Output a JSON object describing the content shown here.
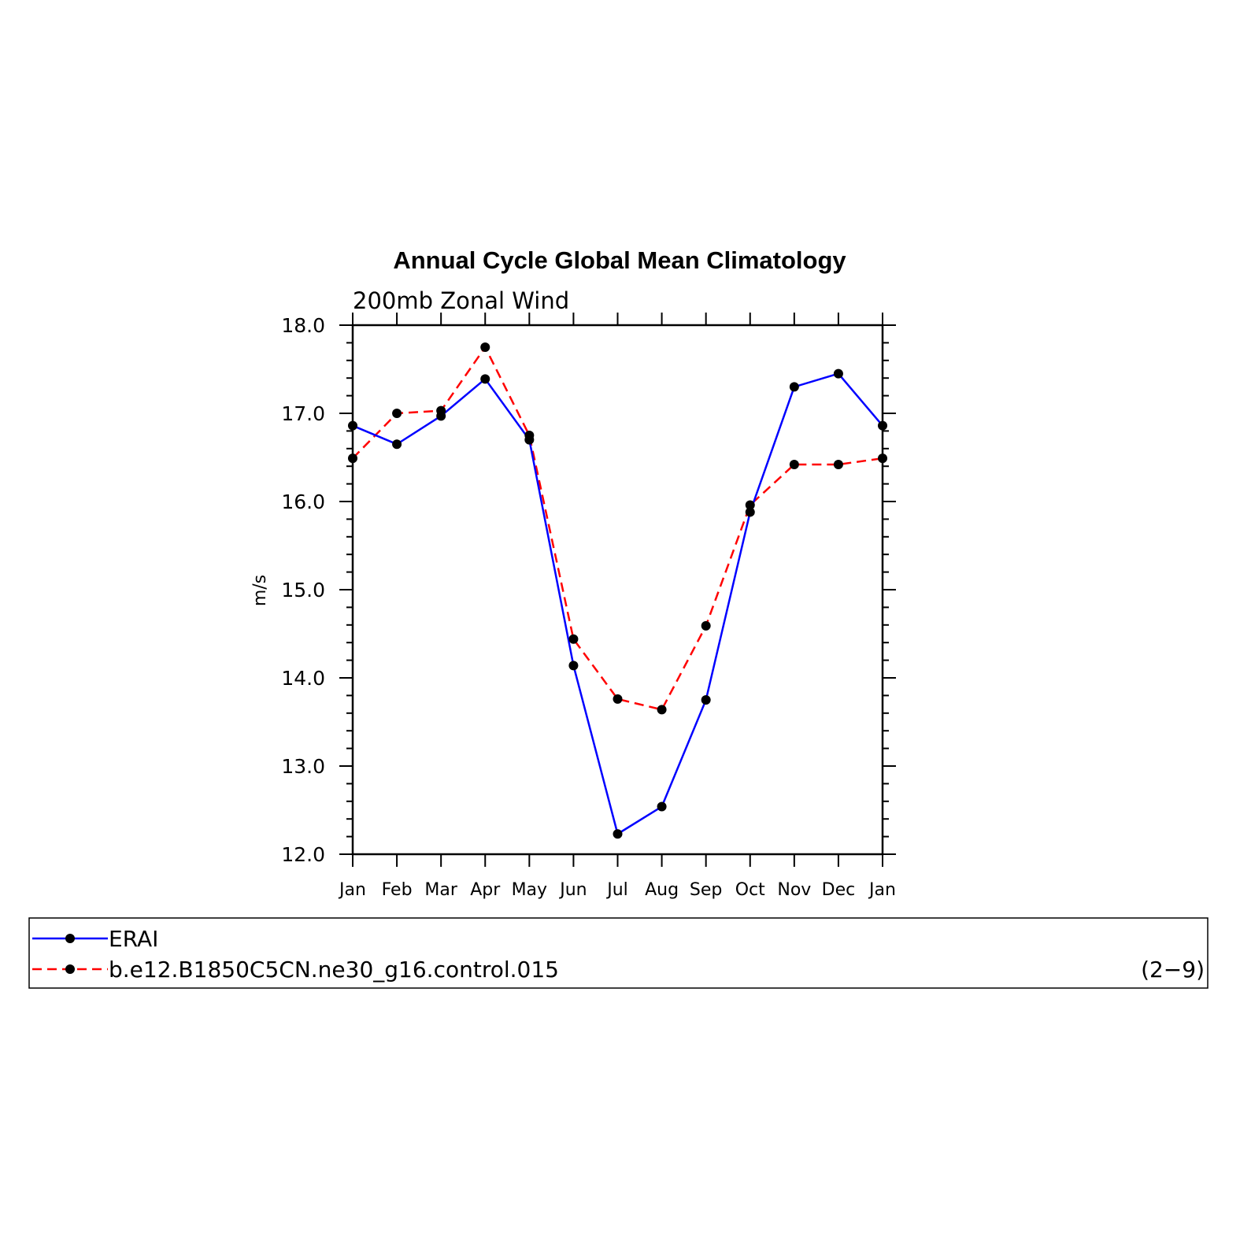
{
  "chart_data": {
    "type": "line",
    "title": "Annual Cycle Global Mean Climatology",
    "subtitle": "200mb Zonal Wind",
    "ylabel": "m/s",
    "xlabel": "",
    "ylim": [
      12.0,
      18.0
    ],
    "yticks": [
      "12.0",
      "13.0",
      "14.0",
      "15.0",
      "16.0",
      "17.0",
      "18.0"
    ],
    "categories": [
      "Jan",
      "Feb",
      "Mar",
      "Apr",
      "May",
      "Jun",
      "Jul",
      "Aug",
      "Sep",
      "Oct",
      "Nov",
      "Dec",
      "Jan"
    ],
    "series": [
      {
        "name": "ERAI",
        "color": "#0000ff",
        "dash": "solid",
        "values": [
          16.86,
          16.65,
          16.97,
          17.39,
          16.7,
          14.14,
          12.23,
          12.54,
          13.75,
          15.88,
          17.3,
          17.45,
          16.86
        ]
      },
      {
        "name": "b.e12.B1850C5CN.ne30_g16.control.015",
        "color": "#ff0000",
        "dash": "dashed",
        "values": [
          16.49,
          17.0,
          17.03,
          17.75,
          16.75,
          14.44,
          13.76,
          13.64,
          14.59,
          15.96,
          16.42,
          16.42,
          16.49
        ]
      }
    ],
    "marker_color": "#000000",
    "legend_position": "bottom",
    "grid": false,
    "panel_label": "(2−9)"
  }
}
